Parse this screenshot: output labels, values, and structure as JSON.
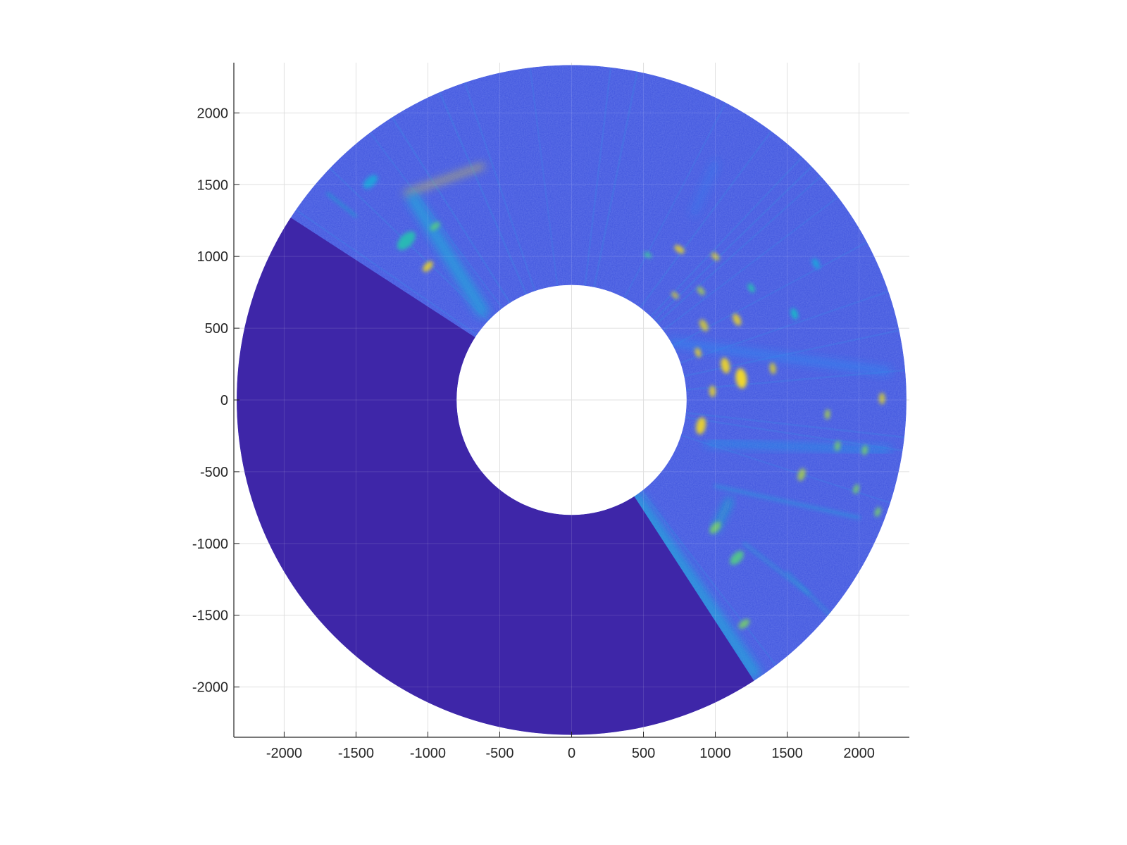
{
  "chart_data": {
    "type": "heatmap",
    "subtype": "polar-sector-radar-image",
    "title": "",
    "xlabel": "",
    "ylabel": "",
    "xlim": [
      -2350,
      2350
    ],
    "ylim": [
      -2350,
      2350
    ],
    "x_ticks": [
      -2000,
      -1500,
      -1000,
      -500,
      0,
      500,
      1000,
      1500,
      2000
    ],
    "y_ticks": [
      2000,
      1500,
      1000,
      500,
      0,
      -500,
      -1000,
      -1500,
      -2000
    ],
    "x_tick_labels": [
      "-2000",
      "-1500",
      "-1000",
      "-500",
      "0",
      "500",
      "1000",
      "1500",
      "2000"
    ],
    "y_tick_labels": [
      "2000",
      "1500",
      "1000",
      "500",
      "0",
      "-500",
      "-1000",
      "-1500",
      "-2000"
    ],
    "grid": true,
    "axis_equal": true,
    "inner_radius": 800,
    "outer_radius": 2330,
    "blank_sector_deg": [
      147,
      303
    ],
    "colormap": "parula",
    "colors": {
      "background_field": "#3f54de",
      "blank_sector": "#3e26a8",
      "cyan": "#15b9c6",
      "yellow": "#f5d020",
      "grid": "#e0e0e0",
      "axis": "#262626"
    },
    "features": [
      {
        "x": 1180,
        "y": 150,
        "r": 70,
        "intensity": 1.0
      },
      {
        "x": 1070,
        "y": 240,
        "r": 55,
        "intensity": 0.95
      },
      {
        "x": 900,
        "y": -180,
        "r": 60,
        "intensity": 0.95
      },
      {
        "x": 980,
        "y": 60,
        "r": 40,
        "intensity": 0.9
      },
      {
        "x": 1000,
        "y": 1000,
        "r": 35,
        "intensity": 0.85
      },
      {
        "x": 750,
        "y": 1050,
        "r": 40,
        "intensity": 0.9
      },
      {
        "x": 720,
        "y": 730,
        "r": 30,
        "intensity": 0.85
      },
      {
        "x": 900,
        "y": 760,
        "r": 35,
        "intensity": 0.8
      },
      {
        "x": 1150,
        "y": 560,
        "r": 45,
        "intensity": 0.9
      },
      {
        "x": 920,
        "y": 520,
        "r": 45,
        "intensity": 0.85
      },
      {
        "x": 880,
        "y": 330,
        "r": 35,
        "intensity": 0.9
      },
      {
        "x": 1400,
        "y": 220,
        "r": 40,
        "intensity": 0.85
      },
      {
        "x": 1780,
        "y": -100,
        "r": 35,
        "intensity": 0.8
      },
      {
        "x": 2160,
        "y": 10,
        "r": 40,
        "intensity": 0.85
      },
      {
        "x": 1600,
        "y": -520,
        "r": 45,
        "intensity": 0.8
      },
      {
        "x": 1850,
        "y": -320,
        "r": 35,
        "intensity": 0.75
      },
      {
        "x": 2040,
        "y": -350,
        "r": 35,
        "intensity": 0.75
      },
      {
        "x": 1980,
        "y": -620,
        "r": 35,
        "intensity": 0.75
      },
      {
        "x": 2130,
        "y": -780,
        "r": 35,
        "intensity": 0.75
      },
      {
        "x": 1150,
        "y": -1100,
        "r": 60,
        "intensity": 0.7
      },
      {
        "x": 1200,
        "y": -1560,
        "r": 45,
        "intensity": 0.75
      },
      {
        "x": 1000,
        "y": -890,
        "r": 50,
        "intensity": 0.75
      },
      {
        "x": -1000,
        "y": 930,
        "r": 45,
        "intensity": 0.9
      },
      {
        "x": -1150,
        "y": 1110,
        "r": 80,
        "intensity": 0.6
      },
      {
        "x": -950,
        "y": 1210,
        "r": 40,
        "intensity": 0.7
      },
      {
        "x": -1400,
        "y": 1520,
        "r": 60,
        "intensity": 0.45
      },
      {
        "x": 530,
        "y": 1010,
        "r": 30,
        "intensity": 0.65
      },
      {
        "x": 1250,
        "y": 780,
        "r": 35,
        "intensity": 0.6
      },
      {
        "x": 1550,
        "y": 600,
        "r": 40,
        "intensity": 0.55
      },
      {
        "x": 1700,
        "y": 950,
        "r": 40,
        "intensity": 0.45
      }
    ],
    "streaks": [
      {
        "x1": -1150,
        "y1": 1440,
        "x2": -620,
        "y2": 1630,
        "w": 30,
        "intensity": 0.9
      },
      {
        "x1": -1700,
        "y1": 1440,
        "x2": -1500,
        "y2": 1280,
        "w": 12,
        "intensity": 0.55
      },
      {
        "x1": -1100,
        "y1": 1400,
        "x2": -620,
        "y2": 620,
        "w": 90,
        "intensity": 0.45
      },
      {
        "x1": 450,
        "y1": -680,
        "x2": 1270,
        "y2": -1900,
        "w": 90,
        "intensity": 0.45
      },
      {
        "x1": 1000,
        "y1": -900,
        "x2": 1100,
        "y2": -700,
        "w": 40,
        "intensity": 0.55
      },
      {
        "x1": 800,
        "y1": 100,
        "x2": 1300,
        "y2": 100,
        "w": 50,
        "intensity": 0.5
      },
      {
        "x1": 950,
        "y1": -300,
        "x2": 2200,
        "y2": -350,
        "w": 40,
        "intensity": 0.4
      },
      {
        "x1": 1000,
        "y1": -600,
        "x2": 2000,
        "y2": -820,
        "w": 16,
        "intensity": 0.45
      },
      {
        "x1": 1200,
        "y1": -1000,
        "x2": 1650,
        "y2": -1350,
        "w": 12,
        "intensity": 0.5
      },
      {
        "x1": 1500,
        "y1": -1200,
        "x2": 1800,
        "y2": -1500,
        "w": 10,
        "intensity": 0.5
      },
      {
        "x1": 700,
        "y1": 400,
        "x2": 2200,
        "y2": 200,
        "w": 40,
        "intensity": 0.35
      },
      {
        "x1": 850,
        "y1": 1300,
        "x2": 1000,
        "y2": 1650,
        "w": 30,
        "intensity": 0.3
      }
    ]
  }
}
